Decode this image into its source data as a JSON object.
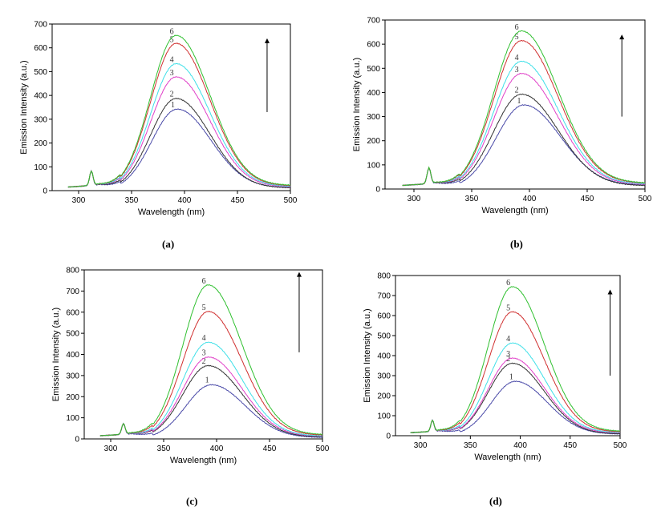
{
  "captions": [
    "(a)",
    "(b)",
    "(c)",
    "(d)"
  ],
  "colors": {
    "1": "#4a4aa8",
    "2": "#333333",
    "3": "#e040c8",
    "4": "#40e0e8",
    "5": "#d03030",
    "6": "#30c030",
    "arrow": "#000000"
  },
  "chart_data": [
    {
      "type": "line",
      "panel": "(a)",
      "xlabel": "Wavelength (nm)",
      "ylabel": "Emission Intensity (a.u.)",
      "xlim": [
        275,
        500
      ],
      "ylim": [
        0,
        700
      ],
      "xticks": [
        300,
        350,
        400,
        450,
        500
      ],
      "yticks": [
        0,
        100,
        200,
        300,
        400,
        500,
        600,
        700
      ],
      "series": [
        {
          "name": "1",
          "peak": 340,
          "peak_wavelength": 393,
          "tail_500": 20
        },
        {
          "name": "2",
          "peak": 385,
          "peak_wavelength": 392,
          "tail_500": 18
        },
        {
          "name": "3",
          "peak": 475,
          "peak_wavelength": 392,
          "tail_500": 25
        },
        {
          "name": "4",
          "peak": 530,
          "peak_wavelength": 392,
          "tail_500": 28
        },
        {
          "name": "5",
          "peak": 615,
          "peak_wavelength": 392,
          "tail_500": 32
        },
        {
          "name": "6",
          "peak": 648,
          "peak_wavelength": 392,
          "tail_500": 35
        }
      ],
      "side_peak": {
        "x": 312,
        "y": 80
      },
      "arrow": {
        "x": 478,
        "y_from": 330,
        "y_to": 640
      }
    },
    {
      "type": "line",
      "panel": "(b)",
      "xlabel": "Wavelength (nm)",
      "ylabel": "Emission Intensity (a.u.)",
      "xlim": [
        275,
        500
      ],
      "ylim": [
        0,
        700
      ],
      "xticks": [
        300,
        350,
        400,
        450,
        500
      ],
      "yticks": [
        0,
        100,
        200,
        300,
        400,
        500,
        600,
        700
      ],
      "series": [
        {
          "name": "1",
          "peak": 345,
          "peak_wavelength": 395,
          "tail_500": 25
        },
        {
          "name": "2",
          "peak": 390,
          "peak_wavelength": 393,
          "tail_500": 22
        },
        {
          "name": "3",
          "peak": 475,
          "peak_wavelength": 393,
          "tail_500": 30
        },
        {
          "name": "4",
          "peak": 525,
          "peak_wavelength": 393,
          "tail_500": 33
        },
        {
          "name": "5",
          "peak": 610,
          "peak_wavelength": 393,
          "tail_500": 38
        },
        {
          "name": "6",
          "peak": 650,
          "peak_wavelength": 393,
          "tail_500": 40
        }
      ],
      "side_peak": {
        "x": 313,
        "y": 85
      },
      "arrow": {
        "x": 480,
        "y_from": 300,
        "y_to": 640
      }
    },
    {
      "type": "line",
      "panel": "(c)",
      "xlabel": "Wavelength (nm)",
      "ylabel": "Emission Intensity (a.u.)",
      "xlim": [
        275,
        500
      ],
      "ylim": [
        0,
        800
      ],
      "xticks": [
        300,
        350,
        400,
        450,
        500
      ],
      "yticks": [
        0,
        100,
        200,
        300,
        400,
        500,
        600,
        700,
        800
      ],
      "series": [
        {
          "name": "1",
          "peak": 255,
          "peak_wavelength": 395,
          "tail_500": 10
        },
        {
          "name": "2",
          "peak": 345,
          "peak_wavelength": 392,
          "tail_500": 15
        },
        {
          "name": "3",
          "peak": 385,
          "peak_wavelength": 392,
          "tail_500": 20
        },
        {
          "name": "4",
          "peak": 455,
          "peak_wavelength": 392,
          "tail_500": 22
        },
        {
          "name": "5",
          "peak": 600,
          "peak_wavelength": 392,
          "tail_500": 28
        },
        {
          "name": "6",
          "peak": 725,
          "peak_wavelength": 392,
          "tail_500": 32
        }
      ],
      "side_peak": {
        "x": 312,
        "y": 70
      },
      "arrow": {
        "x": 478,
        "y_from": 410,
        "y_to": 790
      }
    },
    {
      "type": "line",
      "panel": "(d)",
      "xlabel": "Wavelength (nm)",
      "ylabel": "Emission Intensity (a.u.)",
      "xlim": [
        275,
        500
      ],
      "ylim": [
        0,
        800
      ],
      "xticks": [
        300,
        350,
        400,
        450,
        500
      ],
      "yticks": [
        0,
        100,
        200,
        300,
        400,
        500,
        600,
        700,
        800
      ],
      "series": [
        {
          "name": "1",
          "peak": 270,
          "peak_wavelength": 395,
          "tail_500": 12
        },
        {
          "name": "2",
          "peak": 360,
          "peak_wavelength": 392,
          "tail_500": 15
        },
        {
          "name": "3",
          "peak": 385,
          "peak_wavelength": 392,
          "tail_500": 22
        },
        {
          "name": "4",
          "peak": 460,
          "peak_wavelength": 392,
          "tail_500": 25
        },
        {
          "name": "5",
          "peak": 615,
          "peak_wavelength": 392,
          "tail_500": 30
        },
        {
          "name": "6",
          "peak": 740,
          "peak_wavelength": 392,
          "tail_500": 35
        }
      ],
      "side_peak": {
        "x": 312,
        "y": 75
      },
      "arrow": {
        "x": 490,
        "y_from": 300,
        "y_to": 730
      }
    }
  ]
}
